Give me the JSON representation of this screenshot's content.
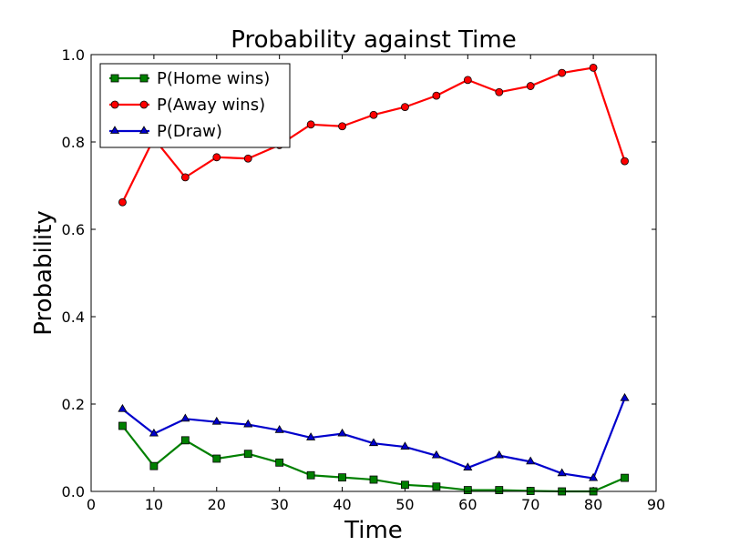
{
  "chart_data": {
    "type": "line",
    "title": "Probability against Time",
    "xlabel": "Time",
    "ylabel": "Probability",
    "xlim": [
      0,
      90
    ],
    "ylim": [
      0.0,
      1.0
    ],
    "xticks": [
      "0",
      "10",
      "20",
      "30",
      "40",
      "50",
      "60",
      "70",
      "80",
      "90"
    ],
    "yticks": [
      "0.0",
      "0.2",
      "0.4",
      "0.6",
      "0.8",
      "1.0"
    ],
    "grid": false,
    "legend_position": "top-left",
    "x": [
      5,
      10,
      15,
      20,
      25,
      30,
      35,
      40,
      45,
      50,
      55,
      60,
      65,
      70,
      75,
      80,
      85
    ],
    "series": [
      {
        "name": "P(Home wins)",
        "color": "#008000",
        "marker": "square",
        "values": [
          0.15,
          0.058,
          0.117,
          0.075,
          0.086,
          0.066,
          0.037,
          0.032,
          0.027,
          0.015,
          0.011,
          0.003,
          0.003,
          0.001,
          0.0,
          0.0,
          0.031
        ]
      },
      {
        "name": "P(Away wins)",
        "color": "#ff0000",
        "marker": "circle",
        "values": [
          0.662,
          0.808,
          0.719,
          0.765,
          0.762,
          0.793,
          0.84,
          0.836,
          0.862,
          0.88,
          0.906,
          0.942,
          0.914,
          0.928,
          0.958,
          0.97,
          0.756
        ]
      },
      {
        "name": "P(Draw)",
        "color": "#0000cc",
        "marker": "triangle",
        "values": [
          0.188,
          0.132,
          0.166,
          0.159,
          0.153,
          0.14,
          0.123,
          0.132,
          0.11,
          0.102,
          0.082,
          0.054,
          0.082,
          0.068,
          0.041,
          0.03,
          0.213
        ]
      }
    ]
  }
}
